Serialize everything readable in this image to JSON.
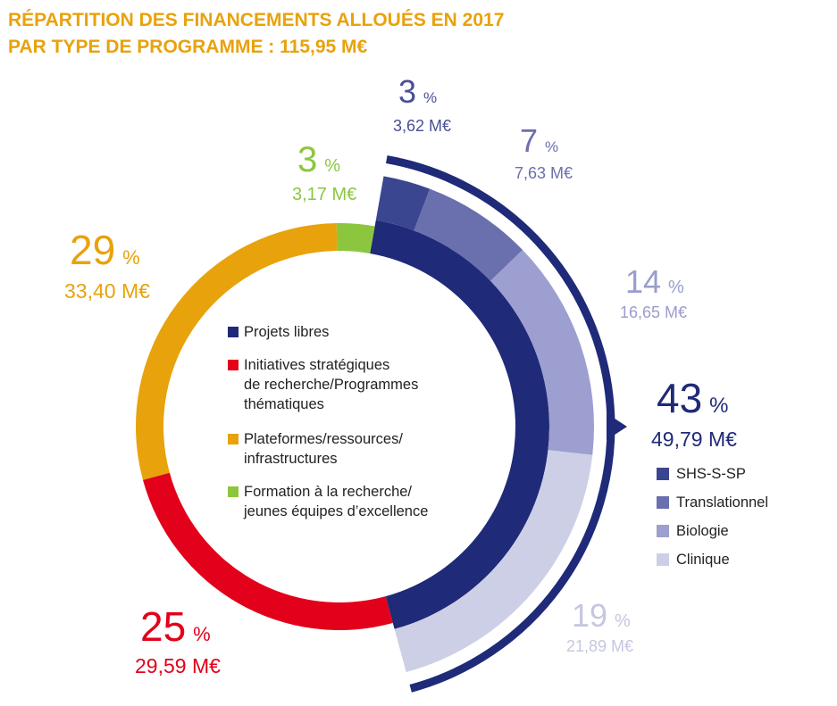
{
  "chart_data": {
    "type": "donut",
    "title": "RÉPARTITION DES FINANCEMENTS ALLOUÉS EN 2017\nPAR TYPE DE PROGRAMME : 115,95 M€",
    "unit": "%",
    "categories": [
      "Projets libres",
      "Initiatives stratégiques\nde recherche/Programmes\nthématiques",
      "Plateformes/ressources/\ninfrastructures",
      "Formation à la recherche/\njeunes équipes d’excellence"
    ],
    "values": [
      43,
      25,
      29,
      3
    ],
    "colors": [
      "#1f2a78",
      "#e2001a",
      "#e8a20c",
      "#8cc63f"
    ],
    "amounts": [
      49.79,
      29.59,
      33.4,
      3.17
    ],
    "amount_labels": [
      "49,79 M€",
      "29,59 M€",
      "33,40 M€",
      "3,17 M€"
    ],
    "breakdown": {
      "categories": [
        "SHS-S-SP",
        "Translationnel",
        "Biologie",
        "Clinique"
      ],
      "values": [
        3,
        7,
        14,
        19
      ],
      "colors": [
        "#3b4690",
        "#6a6fad",
        "#9c9fd0",
        "#cdcfe6"
      ],
      "amounts": [
        3.62,
        7.63,
        16.65,
        21.89
      ],
      "amount_labels": [
        "3,62 M€",
        "7,63 M€",
        "16,65 M€",
        "21,89 M€"
      ]
    }
  }
}
